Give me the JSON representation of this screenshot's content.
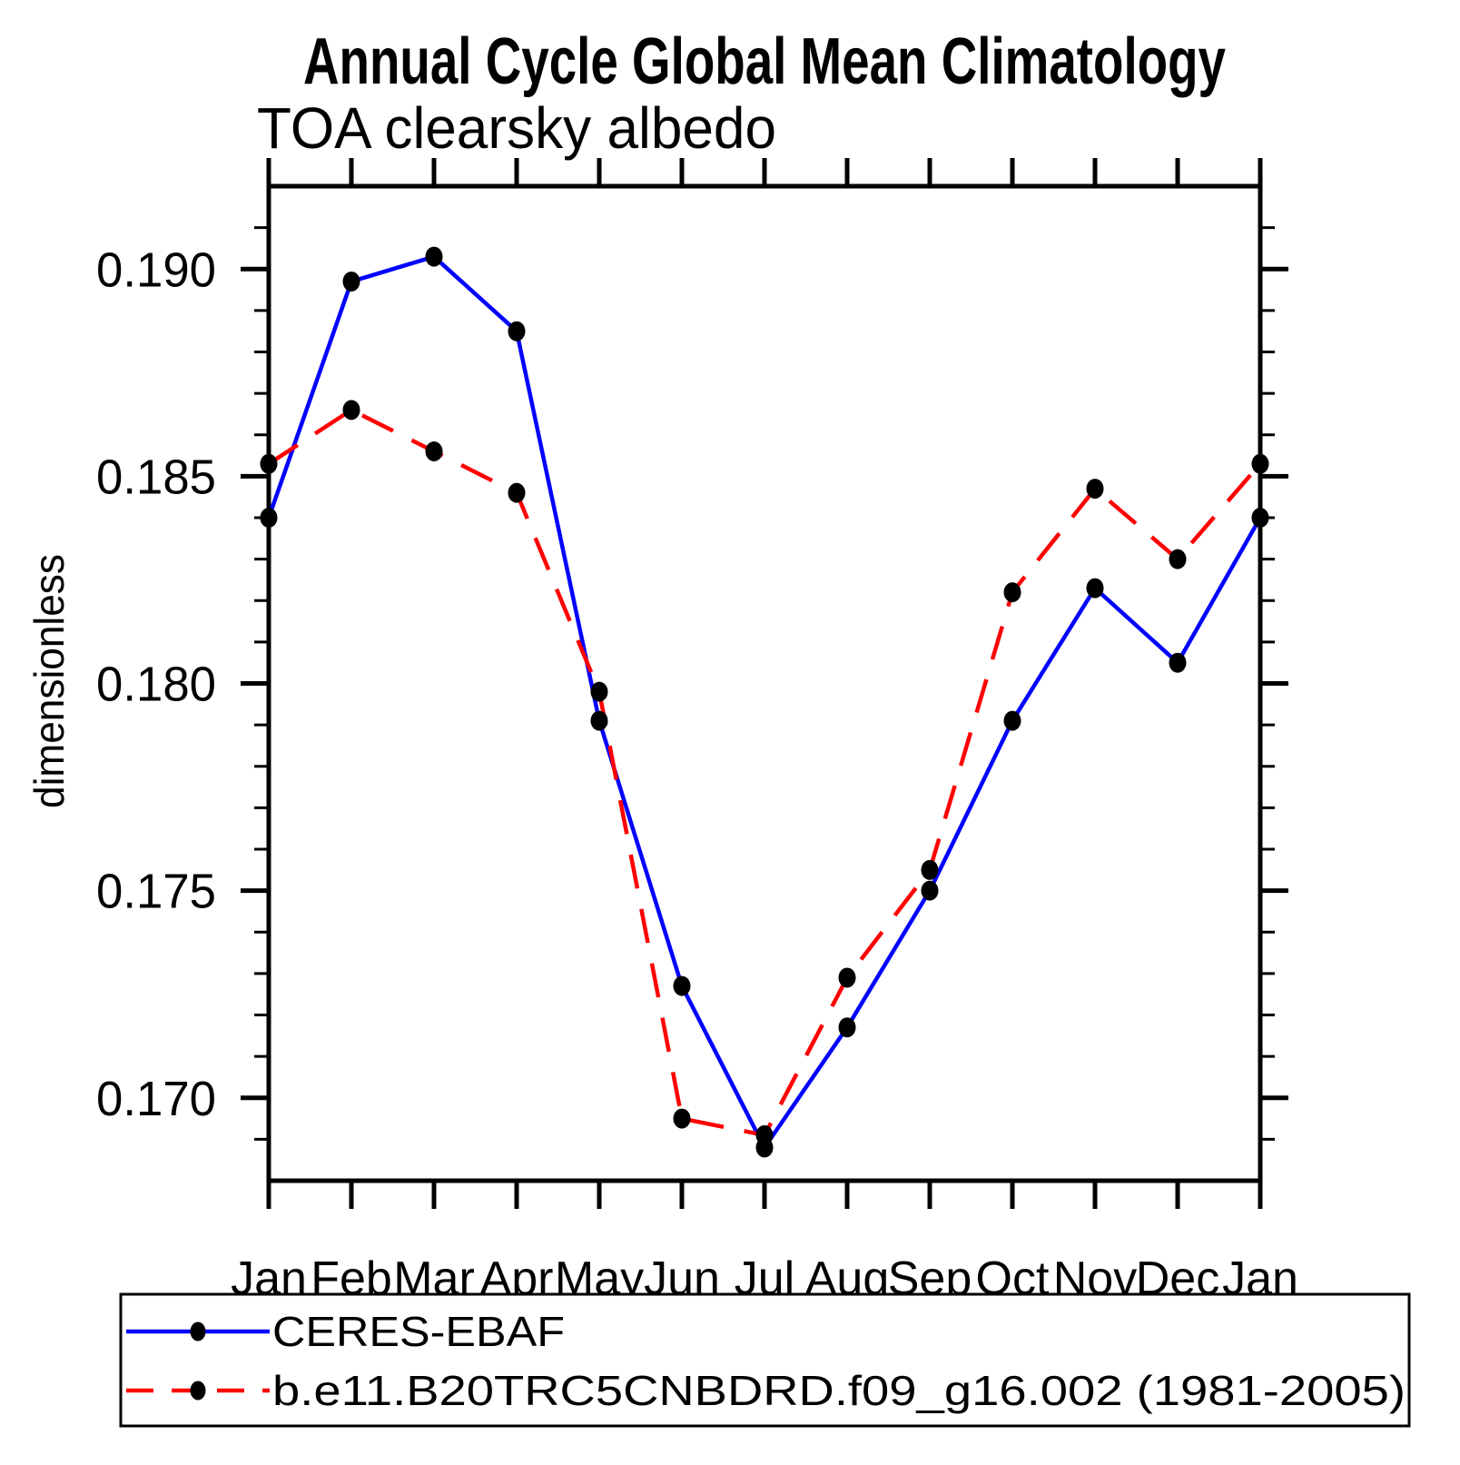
{
  "chart": {
    "title": "Annual Cycle Global Mean Climatology",
    "subtitle": "TOA clearsky albedo",
    "ylabel": "dimensionless"
  },
  "chart_data": {
    "type": "line",
    "title": "Annual Cycle Global Mean Climatology",
    "subtitle": "TOA clearsky albedo",
    "xlabel": "",
    "ylabel": "dimensionless",
    "x_categories": [
      "Jan",
      "Feb",
      "Mar",
      "Apr",
      "May",
      "Jun",
      "Jul",
      "Aug",
      "Sep",
      "Oct",
      "Nov",
      "Dec",
      "Jan"
    ],
    "series": [
      {
        "name": "CERES-EBAF",
        "line_style": "solid",
        "line_color": "#0000ff",
        "marker": "filled-circle",
        "marker_color": "#000000",
        "values": [
          0.184,
          0.1897,
          0.1903,
          0.1885,
          0.1791,
          0.1727,
          0.1688,
          0.1717,
          0.175,
          0.1791,
          0.1823,
          0.1805,
          0.184
        ]
      },
      {
        "name": "b.e11.B20TRC5CNBDRD.f09_g16.002 (1981-2005)",
        "line_style": "dashed",
        "line_color": "#ff0000",
        "marker": "filled-circle",
        "marker_color": "#000000",
        "values": [
          0.1853,
          0.1866,
          0.1856,
          0.1846,
          0.1798,
          0.1695,
          0.1691,
          0.1729,
          0.1755,
          0.1822,
          0.1847,
          0.183,
          0.1853
        ]
      }
    ],
    "ylim": [
      0.168,
      0.192
    ],
    "y_major_ticks": [
      0.17,
      0.175,
      0.18,
      0.185,
      0.19
    ],
    "y_major_tick_labels": [
      "0.170",
      "0.175",
      "0.180",
      "0.185",
      "0.190"
    ],
    "y_minor_step": 0.001,
    "grid": false,
    "axis_color": "#000000",
    "legend_position": "bottom-left-box"
  },
  "legend": {
    "items": [
      {
        "label": "CERES-EBAF"
      },
      {
        "label": "b.e11.B20TRC5CNBDRD.f09_g16.002 (1981-2005)"
      }
    ]
  }
}
